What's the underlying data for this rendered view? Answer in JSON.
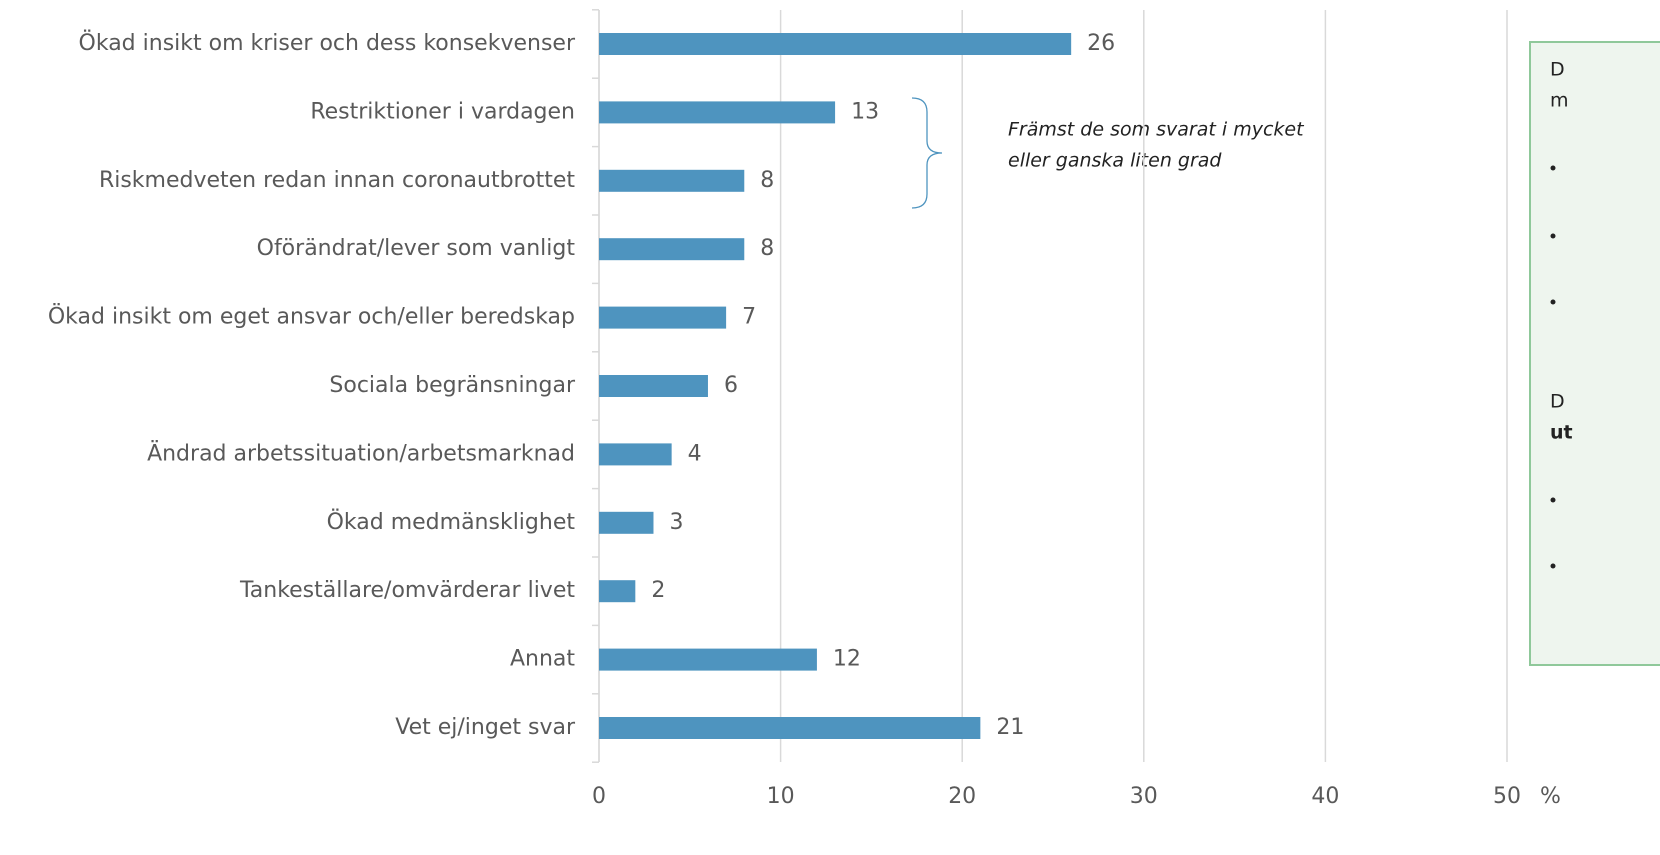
{
  "chart_data": {
    "type": "bar",
    "orientation": "horizontal",
    "categories": [
      "Ökad insikt om kriser och dess konsekvenser",
      "Restriktioner i vardagen",
      "Riskmedveten redan innan coronautbrottet",
      "Oförändrat/lever som vanligt",
      "Ökad insikt om eget ansvar och/eller beredskap",
      "Sociala begränsningar",
      "Ändrad arbetssituation/arbetsmarknad",
      "Ökad medmänsklighet",
      "Tankeställare/omvärderar livet",
      "Annat",
      "Vet ej/inget svar"
    ],
    "values": [
      26,
      13,
      8,
      8,
      7,
      6,
      4,
      3,
      2,
      12,
      21
    ],
    "color": "#4e94bf",
    "xlim": [
      0,
      50
    ],
    "xticks": [
      0,
      10,
      20,
      30,
      40,
      50
    ],
    "x_unit": "%",
    "grid": true,
    "annotation": [
      "Främst de som svarat i mycket",
      "eller ganska liten grad"
    ]
  },
  "sidebar": {
    "intro": [
      "D",
      "m"
    ],
    "second": [
      "D",
      "ut"
    ]
  }
}
